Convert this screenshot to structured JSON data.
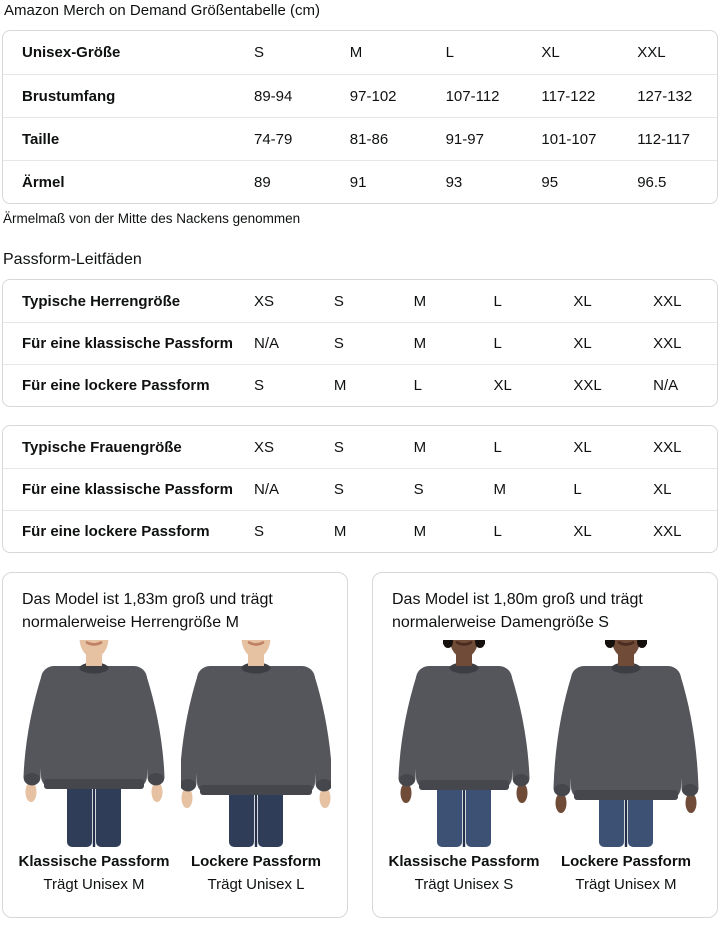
{
  "page": {
    "title": "Amazon Merch on Demand Größentabelle (cm)",
    "note": "Ärmelmaß von der Mitte des Nackens genommen",
    "fit_guides_heading": "Passform-Leitfäden"
  },
  "size_table": {
    "header_label": "Unisex-Größe",
    "sizes": [
      "S",
      "M",
      "L",
      "XL",
      "XXL"
    ],
    "rows": [
      {
        "label": "Brustumfang",
        "values": [
          "89-94",
          "97-102",
          "107-112",
          "117-122",
          "127-132"
        ]
      },
      {
        "label": "Taille",
        "values": [
          "74-79",
          "81-86",
          "91-97",
          "101-107",
          "112-117"
        ]
      },
      {
        "label": "Ärmel",
        "values": [
          "89",
          "91",
          "93",
          "95",
          "96.5"
        ]
      }
    ]
  },
  "fit_tables": [
    {
      "id": "men",
      "rows": [
        {
          "label": "Typische Herrengröße",
          "values": [
            "XS",
            "S",
            "M",
            "L",
            "XL",
            "XXL"
          ]
        },
        {
          "label": "Für eine klassische Passform",
          "values": [
            "N/A",
            "S",
            "M",
            "L",
            "XL",
            "XXL"
          ]
        },
        {
          "label": "Für eine lockere Passform",
          "values": [
            "S",
            "M",
            "L",
            "XL",
            "XXL",
            "N/A"
          ]
        }
      ]
    },
    {
      "id": "women",
      "rows": [
        {
          "label": "Typische Frauengröße",
          "values": [
            "XS",
            "S",
            "M",
            "L",
            "XL",
            "XXL"
          ]
        },
        {
          "label": "Für eine klassische Passform",
          "values": [
            "N/A",
            "S",
            "S",
            "M",
            "L",
            "XL"
          ]
        },
        {
          "label": "Für eine lockere Passform",
          "values": [
            "S",
            "M",
            "M",
            "L",
            "XL",
            "XXL"
          ]
        }
      ]
    }
  ],
  "model_cards": [
    {
      "heading": "Das Model ist 1,83m groß und trägt normalerweise Herrengröße M",
      "models": [
        {
          "figure": "male",
          "fit": "classic",
          "fit_label": "Klassische Passform",
          "size_label": "Trägt Unisex M"
        },
        {
          "figure": "male",
          "fit": "loose",
          "fit_label": "Lockere Passform",
          "size_label": "Trägt Unisex L"
        }
      ]
    },
    {
      "heading": "Das Model ist 1,80m groß und trägt normalerweise Damengröße S",
      "models": [
        {
          "figure": "female",
          "fit": "classic",
          "fit_label": "Klassische Passform",
          "size_label": "Trägt Unisex S"
        },
        {
          "figure": "female",
          "fit": "loose",
          "fit_label": "Lockere Passform",
          "size_label": "Trägt Unisex M"
        }
      ]
    }
  ],
  "colors": {
    "text": "#0F1111",
    "table_border": "#D5D9D9",
    "row_divider": "#E7E7E7",
    "sweatshirt": "#54565B",
    "sweatshirt_trim": "#45474C",
    "collar": "#3C3E43",
    "male_skin": "#E7C2A2",
    "male_lips": "#C08066",
    "male_jeans": "#2F3D58",
    "female_skin": "#6F4B38",
    "female_lips": "#4A2B20",
    "female_hair": "#15100D",
    "female_jeans": "#3C5173",
    "jeans_seam": "#24304A"
  }
}
